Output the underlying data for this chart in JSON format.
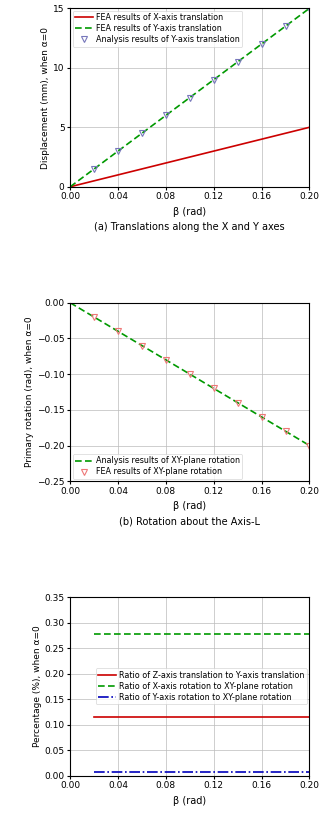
{
  "fig_width": 3.19,
  "fig_height": 8.34,
  "dpi": 100,
  "subplot_a": {
    "beta_line": [
      0,
      0.02,
      0.04,
      0.06,
      0.08,
      0.1,
      0.12,
      0.14,
      0.16,
      0.18,
      0.2
    ],
    "x_trans": [
      0,
      0.5,
      1.0,
      1.5,
      2.0,
      2.5,
      3.0,
      3.5,
      4.0,
      4.5,
      5.0
    ],
    "y_trans_fea": [
      0,
      1.5,
      3.0,
      4.5,
      6.0,
      7.5,
      9.0,
      10.5,
      12.0,
      13.5,
      15.0
    ],
    "y_trans_analysis_beta": [
      0.02,
      0.04,
      0.06,
      0.08,
      0.1,
      0.12,
      0.14,
      0.16,
      0.18,
      0.2
    ],
    "y_trans_analysis": [
      1.5,
      3.0,
      4.5,
      6.0,
      7.5,
      9.0,
      10.5,
      12.0,
      13.5,
      15.0
    ],
    "xlim": [
      0,
      0.2
    ],
    "ylim": [
      0,
      15
    ],
    "xticks": [
      0,
      0.04,
      0.08,
      0.12,
      0.16,
      0.2
    ],
    "yticks": [
      0,
      5,
      10,
      15
    ],
    "xlabel": "β (rad)",
    "ylabel": "Displacement (mm), when α=0",
    "legend": [
      "FEA results of X-axis translation",
      "FEA results of Y-axis translation",
      "Analysis results of Y-axis translation"
    ],
    "caption": "(a) Translations along the X and Y axes",
    "color_x": "#cc0000",
    "color_y_fea": "#009900",
    "color_y_analysis": "#7777bb"
  },
  "subplot_b": {
    "beta_line": [
      0,
      0.02,
      0.04,
      0.06,
      0.08,
      0.1,
      0.12,
      0.14,
      0.16,
      0.18,
      0.2
    ],
    "rot_analysis": [
      0,
      -0.02,
      -0.04,
      -0.06,
      -0.08,
      -0.1,
      -0.12,
      -0.14,
      -0.16,
      -0.18,
      -0.2
    ],
    "rot_fea_beta": [
      0.02,
      0.04,
      0.06,
      0.08,
      0.1,
      0.12,
      0.14,
      0.16,
      0.18,
      0.2
    ],
    "rot_fea": [
      -0.02,
      -0.04,
      -0.06,
      -0.08,
      -0.1,
      -0.12,
      -0.14,
      -0.16,
      -0.18,
      -0.2
    ],
    "xlim": [
      0,
      0.2
    ],
    "ylim": [
      -0.25,
      0
    ],
    "xticks": [
      0,
      0.04,
      0.08,
      0.12,
      0.16,
      0.2
    ],
    "yticks": [
      0,
      -0.05,
      -0.1,
      -0.15,
      -0.2,
      -0.25
    ],
    "xlabel": "β (rad)",
    "ylabel": "Primary rotation (rad), when α=0",
    "legend": [
      "FEA results of XY-plane rotation",
      "Analysis results of XY-plane rotation"
    ],
    "caption": "(b) Rotation about the Axis-L",
    "color_fea": "#ee7777",
    "color_analysis": "#009900"
  },
  "subplot_c": {
    "beta": [
      0.02,
      0.04,
      0.06,
      0.08,
      0.1,
      0.12,
      0.14,
      0.16,
      0.18,
      0.2
    ],
    "ratio_z_y": [
      0.115,
      0.115,
      0.115,
      0.115,
      0.115,
      0.115,
      0.115,
      0.115,
      0.115,
      0.115
    ],
    "ratio_x_xy": [
      0.278,
      0.278,
      0.278,
      0.278,
      0.278,
      0.278,
      0.278,
      0.278,
      0.278,
      0.278
    ],
    "ratio_y_xy": [
      0.007,
      0.007,
      0.007,
      0.007,
      0.007,
      0.007,
      0.007,
      0.007,
      0.007,
      0.007
    ],
    "xlim": [
      0,
      0.2
    ],
    "ylim": [
      0,
      0.35
    ],
    "xticks": [
      0,
      0.04,
      0.08,
      0.12,
      0.16,
      0.2
    ],
    "yticks": [
      0,
      0.05,
      0.1,
      0.15,
      0.2,
      0.25,
      0.3,
      0.35
    ],
    "xlabel": "β (rad)",
    "ylabel": "Percentage (%), when α=0",
    "legend": [
      "Ratio of Z-axis translation to Y-axis translation",
      "Ratio of X-axis rotation to XY-plane rotation",
      "Ratio of Y-axis rotation to XY-plane rotation"
    ],
    "color_z_y": "#cc0000",
    "color_x_xy": "#009900",
    "color_y_xy": "#0000bb"
  }
}
